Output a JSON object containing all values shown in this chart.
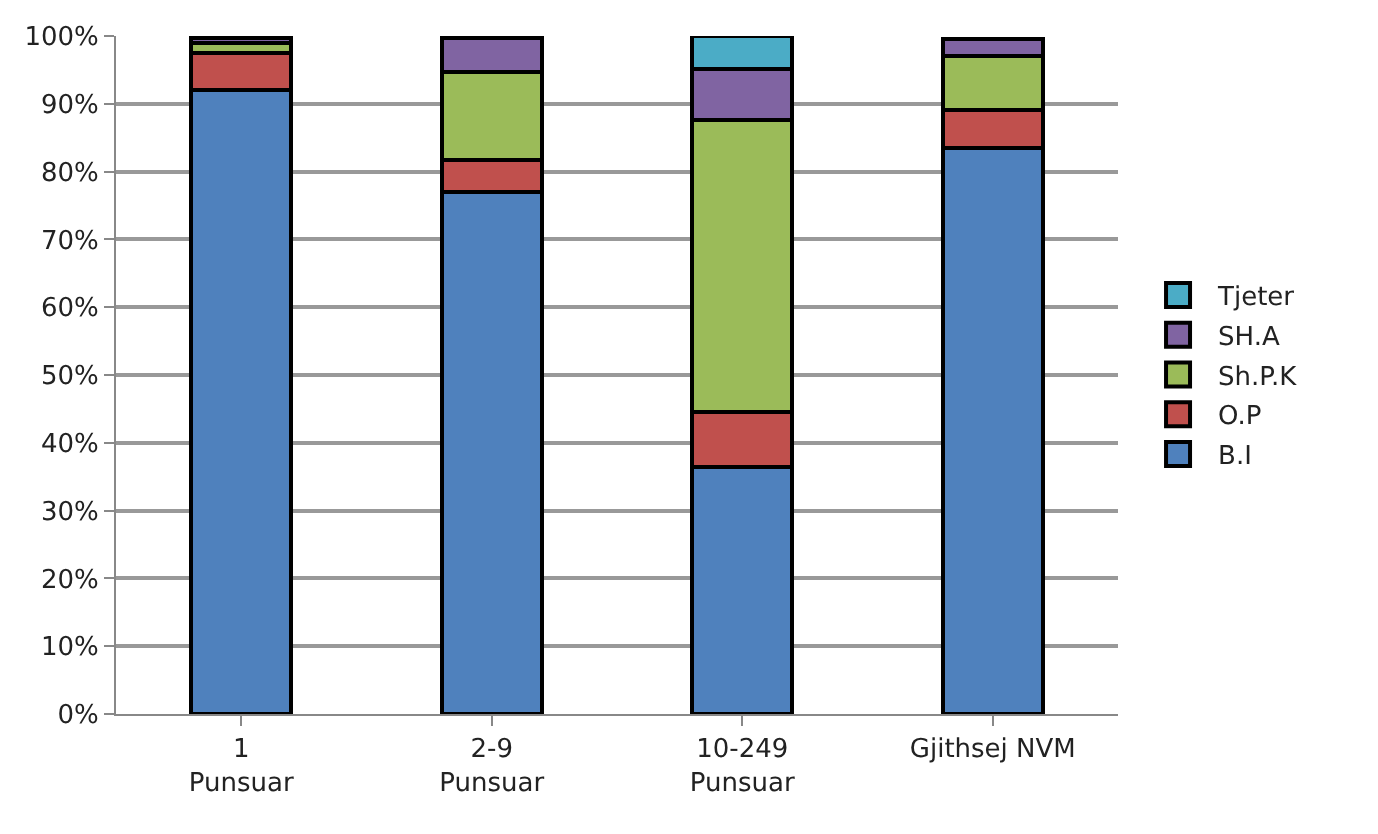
{
  "chart_data": {
    "type": "bar",
    "stacked": true,
    "categories": [
      "1\nPunsuar",
      "2-9\nPunsuar",
      "10-249\nPunsuar",
      "Gjithsej NVM"
    ],
    "series": [
      {
        "name": "B.I",
        "color": "#4f81bd",
        "values": [
          92,
          77,
          36.4,
          83.5
        ]
      },
      {
        "name": "O.P",
        "color": "#c0504d",
        "values": [
          5.5,
          4.7,
          8.1,
          5.6
        ]
      },
      {
        "name": "Sh.P.K",
        "color": "#9bbb59",
        "values": [
          1.5,
          13,
          43.1,
          7.9
        ]
      },
      {
        "name": "SH.A",
        "color": "#8064a2",
        "values": [
          0.7,
          5,
          7.5,
          2.6
        ]
      },
      {
        "name": "Tjeter",
        "color": "#4bacc6",
        "values": [
          0.3,
          0.3,
          4.9,
          null
        ]
      }
    ],
    "ylim": [
      0,
      100
    ],
    "yticks": [
      {
        "value": 0,
        "label": "0%"
      },
      {
        "value": 10,
        "label": "10%"
      },
      {
        "value": 20,
        "label": "20%"
      },
      {
        "value": 30,
        "label": "30%"
      },
      {
        "value": 40,
        "label": "40%"
      },
      {
        "value": 50,
        "label": "50%"
      },
      {
        "value": 60,
        "label": "60%"
      },
      {
        "value": 70,
        "label": "70%"
      },
      {
        "value": 80,
        "label": "80%"
      },
      {
        "value": 90,
        "label": "90%"
      },
      {
        "value": 100,
        "label": "100%"
      }
    ],
    "grid": "y",
    "legend": "right"
  }
}
